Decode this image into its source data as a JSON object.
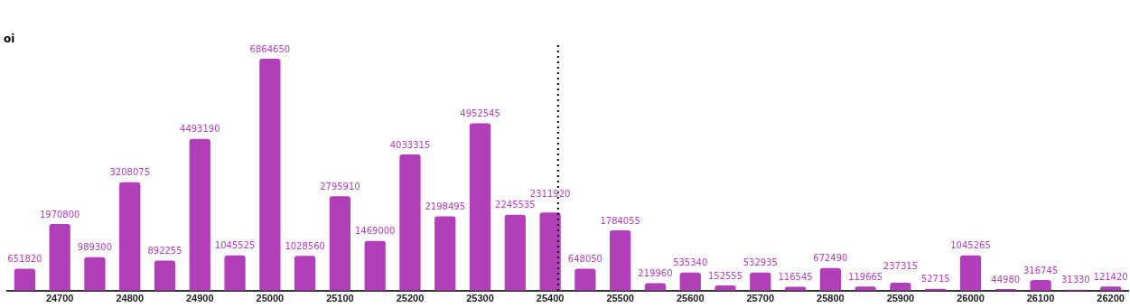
{
  "chart_data": {
    "type": "bar",
    "ylabel": "oi",
    "categories": [
      null,
      "24700",
      null,
      "24800",
      null,
      "24900",
      null,
      "25000",
      null,
      "25100",
      null,
      "25200",
      null,
      "25300",
      null,
      "25400",
      null,
      "25500",
      null,
      "25600",
      null,
      "25700",
      null,
      "25800",
      null,
      "25900",
      null,
      "26000",
      null,
      "26100",
      null,
      "26200"
    ],
    "values": [
      651820,
      1970800,
      989300,
      3208075,
      892255,
      4493190,
      1045525,
      6864650,
      1028560,
      2795910,
      1469000,
      4033315,
      2198495,
      4952545,
      2245535,
      2311920,
      648050,
      1784055,
      219960,
      535340,
      152555,
      532935,
      116545,
      672490,
      119665,
      237315,
      52715,
      1045265,
      44980,
      316745,
      31330,
      121420
    ],
    "color": "#b03fb8",
    "data_labels": true,
    "tick_labels": "x",
    "ref_lines": [
      {
        "axis": "x",
        "value": "25400",
        "line_style": "dotted",
        "color": "#000000"
      }
    ]
  }
}
